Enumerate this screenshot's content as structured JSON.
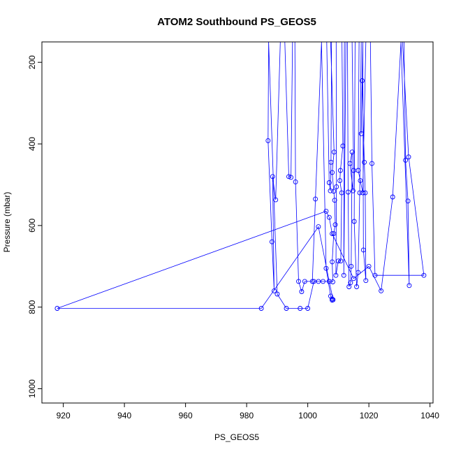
{
  "chart_data": {
    "type": "line",
    "title": "ATOM2 Southbound PS_GEOS5",
    "xlabel": "PS_GEOS5",
    "ylabel": "Pressure (mbar)",
    "xlim": [
      913,
      1041
    ],
    "ylim": [
      1035,
      150
    ],
    "y_reversed": true,
    "xticks": [
      920,
      940,
      960,
      980,
      1000,
      1020,
      1040
    ],
    "yticks": [
      200,
      400,
      600,
      800,
      1000
    ],
    "grid": false,
    "legend": "none",
    "marker": "open-circle",
    "series_color": "#0000ff",
    "series": [
      {
        "points": [
          [
            1008.0,
            783
          ],
          [
            1008.3,
            782
          ],
          [
            1007.0,
            737
          ],
          [
            1008.2,
            738
          ],
          [
            1008.0,
            689
          ],
          [
            1008.5,
            620
          ],
          [
            1009.0,
            598
          ],
          [
            1008.8,
            538
          ],
          [
            1008.5,
            516
          ],
          [
            1008.0,
            470
          ],
          [
            1008.6,
            420
          ],
          [
            1007.5,
            150
          ],
          [
            1006.2,
            150
          ],
          [
            1007.0,
            495
          ],
          [
            1007.4,
            515
          ],
          [
            1007.6,
            445
          ],
          [
            1007.8,
            150
          ],
          [
            1009.3,
            150
          ],
          [
            1009.4,
            505
          ],
          [
            1009.2,
            722
          ],
          [
            1010.0,
            687
          ],
          [
            1010.8,
            687
          ],
          [
            1011.1,
            520
          ],
          [
            1010.5,
            490
          ],
          [
            1010.7,
            465
          ],
          [
            1011.5,
            405
          ],
          [
            1011.2,
            150
          ],
          [
            1012.0,
            150
          ],
          [
            1011.8,
            722
          ],
          [
            1012.5,
            150
          ],
          [
            1013.0,
            150
          ],
          [
            1013.2,
            518
          ],
          [
            1013.5,
            750
          ],
          [
            1014.0,
            740
          ],
          [
            1014.2,
            700
          ],
          [
            1014.5,
            420
          ],
          [
            1013.8,
            448
          ],
          [
            1014.8,
            515
          ],
          [
            1015.0,
            465
          ],
          [
            1014.5,
            150
          ],
          [
            1015.5,
            150
          ],
          [
            1015.2,
            590
          ],
          [
            1016.0,
            750
          ],
          [
            1016.5,
            715
          ],
          [
            1017.0,
            520
          ],
          [
            1017.5,
            150
          ],
          [
            1018.0,
            150
          ],
          [
            1018.2,
            660
          ],
          [
            1019.0,
            735
          ],
          [
            1018.8,
            520
          ],
          [
            1018.5,
            445
          ],
          [
            1017.8,
            245
          ],
          [
            1017.5,
            375
          ],
          [
            1018.0,
            150
          ],
          [
            1016.8,
            150
          ],
          [
            1016.5,
            465
          ],
          [
            1017.2,
            490
          ],
          [
            1018.0,
            520
          ],
          [
            1019.0,
            150
          ],
          [
            1020.5,
            150
          ],
          [
            1021.0,
            448
          ],
          [
            1022.0,
            722
          ],
          [
            1038.0,
            722
          ],
          [
            1033.0,
            432
          ],
          [
            1031.0,
            150
          ],
          [
            1031.5,
            150
          ],
          [
            1032.0,
            440
          ],
          [
            1032.8,
            540
          ],
          [
            1033.2,
            747
          ],
          [
            1030.5,
            150
          ],
          [
            1027.8,
            530
          ],
          [
            1024.0,
            760
          ],
          [
            1020.0,
            700
          ],
          [
            1015.0,
            730
          ],
          [
            1008.0,
            620
          ],
          [
            1007.0,
            580
          ],
          [
            1006.0,
            565
          ],
          [
            918.0,
            803
          ],
          [
            984.8,
            803
          ],
          [
            1003.5,
            603
          ],
          [
            1007.0,
            737
          ],
          [
            1005.0,
            737
          ],
          [
            1003.5,
            737
          ],
          [
            1002.0,
            737
          ],
          [
            1000.0,
            803
          ],
          [
            997.5,
            803
          ],
          [
            993.0,
            803
          ],
          [
            990.0,
            768
          ],
          [
            987.2,
            150
          ],
          [
            987.0,
            392
          ],
          [
            988.3,
            640
          ],
          [
            989.0,
            760
          ],
          [
            988.5,
            480
          ],
          [
            989.5,
            537
          ],
          [
            991.0,
            150
          ],
          [
            992.5,
            150
          ],
          [
            993.8,
            480
          ],
          [
            994.5,
            482
          ],
          [
            995.0,
            150
          ],
          [
            995.8,
            150
          ],
          [
            996.0,
            493
          ],
          [
            997.0,
            737
          ],
          [
            998.0,
            762
          ],
          [
            999.0,
            737
          ],
          [
            1001.5,
            737
          ],
          [
            1002.5,
            535
          ],
          [
            1004.5,
            150
          ],
          [
            1006.0,
            705
          ],
          [
            1007.5,
            773
          ],
          [
            1008.0,
            780
          ]
        ]
      }
    ]
  }
}
